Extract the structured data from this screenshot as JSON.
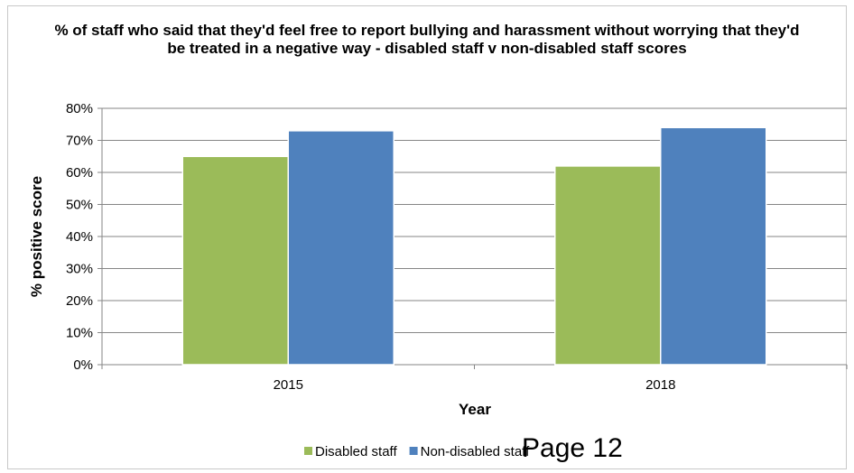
{
  "page_label": "Page 12",
  "chart_data": {
    "type": "bar",
    "title": "% of staff who said that they'd feel free to report bullying and harassment without worrying that they'd be treated in a negative way - disabled staff v non-disabled staff scores",
    "xlabel": "Year",
    "ylabel": "% positive score",
    "categories": [
      "2015",
      "2018"
    ],
    "series": [
      {
        "name": "Disabled staff",
        "color": "#9bbb59",
        "values": [
          65,
          62
        ]
      },
      {
        "name": "Non-disabled staff",
        "color": "#4f81bd",
        "values": [
          73,
          74
        ]
      }
    ],
    "ylim": [
      0,
      80
    ],
    "yticks": [
      0,
      10,
      20,
      30,
      40,
      50,
      60,
      70,
      80
    ],
    "ytick_labels": [
      "0%",
      "10%",
      "20%",
      "30%",
      "40%",
      "50%",
      "60%",
      "70%",
      "80%"
    ],
    "grid": true,
    "legend_position": "bottom"
  }
}
